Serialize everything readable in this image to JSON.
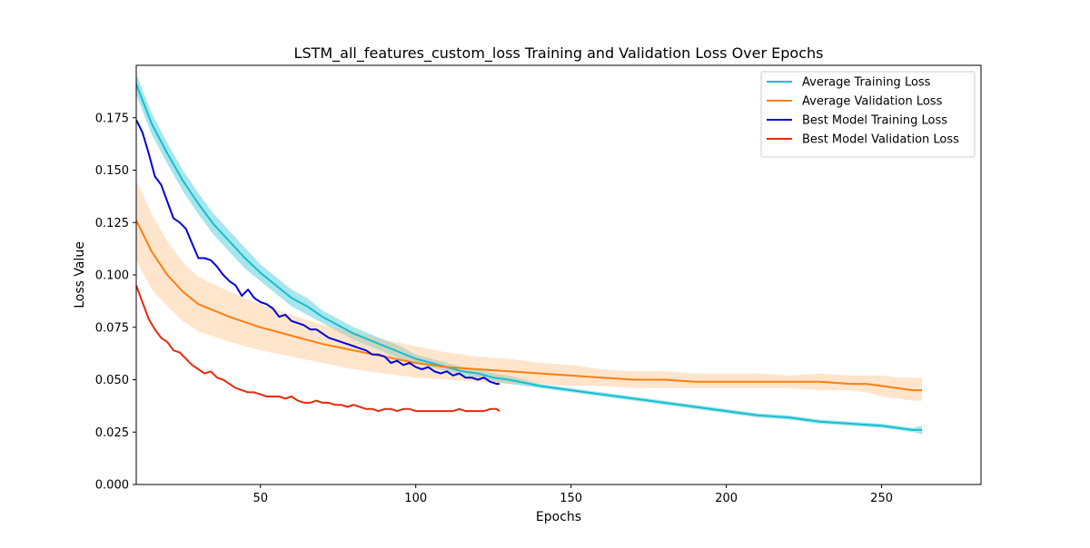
{
  "chart_data": {
    "type": "line",
    "title": "LSTM_all_features_custom_loss  Training and Validation Loss Over Epochs",
    "xlabel": "Epochs",
    "ylabel": "Loss Value",
    "xlim": [
      10,
      282
    ],
    "ylim": [
      0,
      0.2
    ],
    "x_ticks": [
      50,
      100,
      150,
      200,
      250
    ],
    "y_ticks": [
      0.0,
      0.025,
      0.05,
      0.075,
      0.1,
      0.125,
      0.15,
      0.175
    ],
    "x_tick_labels": [
      "50",
      "100",
      "150",
      "200",
      "250"
    ],
    "y_tick_labels": [
      "0.000",
      "0.025",
      "0.050",
      "0.075",
      "0.100",
      "0.125",
      "0.150",
      "0.175"
    ],
    "grid": false,
    "legend_position": "upper right",
    "series": [
      {
        "name": "Average Training Loss",
        "color": "#17becf",
        "band_color": "#17becf",
        "x": [
          10,
          15,
          20,
          25,
          30,
          35,
          40,
          45,
          50,
          55,
          60,
          65,
          70,
          75,
          80,
          85,
          90,
          95,
          100,
          105,
          110,
          115,
          120,
          125,
          130,
          140,
          150,
          160,
          170,
          180,
          190,
          200,
          210,
          220,
          230,
          240,
          250,
          255,
          260,
          263
        ],
        "values": [
          0.191,
          0.172,
          0.158,
          0.145,
          0.134,
          0.124,
          0.116,
          0.108,
          0.101,
          0.095,
          0.089,
          0.085,
          0.08,
          0.076,
          0.072,
          0.069,
          0.066,
          0.063,
          0.06,
          0.058,
          0.056,
          0.054,
          0.053,
          0.051,
          0.05,
          0.047,
          0.045,
          0.043,
          0.041,
          0.039,
          0.037,
          0.035,
          0.033,
          0.032,
          0.03,
          0.029,
          0.028,
          0.027,
          0.026,
          0.026
        ],
        "band_lower": [
          0.186,
          0.167,
          0.153,
          0.14,
          0.129,
          0.119,
          0.111,
          0.103,
          0.097,
          0.091,
          0.085,
          0.081,
          0.077,
          0.073,
          0.069,
          0.066,
          0.063,
          0.06,
          0.058,
          0.056,
          0.054,
          0.052,
          0.051,
          0.049,
          0.048,
          0.046,
          0.044,
          0.042,
          0.04,
          0.038,
          0.036,
          0.034,
          0.032,
          0.031,
          0.029,
          0.028,
          0.027,
          0.026,
          0.025,
          0.024
        ],
        "band_upper": [
          0.196,
          0.177,
          0.163,
          0.15,
          0.139,
          0.129,
          0.121,
          0.113,
          0.105,
          0.099,
          0.093,
          0.089,
          0.083,
          0.079,
          0.075,
          0.072,
          0.069,
          0.066,
          0.062,
          0.06,
          0.058,
          0.056,
          0.055,
          0.053,
          0.052,
          0.048,
          0.046,
          0.044,
          0.042,
          0.04,
          0.038,
          0.036,
          0.034,
          0.033,
          0.031,
          0.03,
          0.029,
          0.028,
          0.027,
          0.028
        ]
      },
      {
        "name": "Average Validation Loss",
        "color": "#ff7f0e",
        "band_color": "#ffbb78",
        "x": [
          10,
          15,
          20,
          25,
          30,
          40,
          50,
          60,
          70,
          80,
          90,
          100,
          110,
          120,
          130,
          140,
          150,
          160,
          170,
          180,
          190,
          200,
          210,
          220,
          230,
          240,
          245,
          250,
          255,
          260,
          263
        ],
        "values": [
          0.126,
          0.111,
          0.1,
          0.092,
          0.086,
          0.08,
          0.075,
          0.071,
          0.067,
          0.064,
          0.061,
          0.058,
          0.056,
          0.055,
          0.054,
          0.053,
          0.052,
          0.051,
          0.05,
          0.05,
          0.049,
          0.049,
          0.049,
          0.049,
          0.049,
          0.048,
          0.048,
          0.047,
          0.046,
          0.045,
          0.045
        ],
        "band_lower": [
          0.107,
          0.093,
          0.085,
          0.078,
          0.073,
          0.068,
          0.064,
          0.061,
          0.058,
          0.055,
          0.053,
          0.051,
          0.05,
          0.049,
          0.048,
          0.048,
          0.047,
          0.047,
          0.046,
          0.046,
          0.046,
          0.046,
          0.046,
          0.046,
          0.045,
          0.045,
          0.044,
          0.042,
          0.041,
          0.04,
          0.04
        ],
        "band_upper": [
          0.145,
          0.129,
          0.116,
          0.106,
          0.099,
          0.092,
          0.086,
          0.081,
          0.076,
          0.073,
          0.069,
          0.066,
          0.063,
          0.061,
          0.06,
          0.058,
          0.057,
          0.055,
          0.054,
          0.054,
          0.053,
          0.053,
          0.053,
          0.052,
          0.053,
          0.052,
          0.052,
          0.052,
          0.051,
          0.051,
          0.051
        ]
      },
      {
        "name": "Best Model Training Loss",
        "color": "#0000dd",
        "x": [
          10,
          12,
          14,
          16,
          18,
          20,
          22,
          24,
          26,
          28,
          30,
          32,
          34,
          36,
          38,
          40,
          42,
          44,
          46,
          48,
          50,
          52,
          54,
          56,
          58,
          60,
          62,
          64,
          66,
          68,
          70,
          72,
          74,
          76,
          78,
          80,
          82,
          84,
          86,
          88,
          90,
          92,
          94,
          96,
          98,
          100,
          102,
          104,
          106,
          108,
          110,
          112,
          114,
          116,
          118,
          120,
          122,
          124,
          126,
          127
        ],
        "values": [
          0.174,
          0.168,
          0.158,
          0.147,
          0.143,
          0.135,
          0.127,
          0.125,
          0.122,
          0.115,
          0.108,
          0.108,
          0.107,
          0.104,
          0.1,
          0.097,
          0.095,
          0.09,
          0.093,
          0.089,
          0.087,
          0.086,
          0.084,
          0.08,
          0.081,
          0.078,
          0.077,
          0.076,
          0.074,
          0.074,
          0.072,
          0.07,
          0.069,
          0.068,
          0.067,
          0.066,
          0.065,
          0.064,
          0.062,
          0.062,
          0.061,
          0.058,
          0.059,
          0.057,
          0.058,
          0.056,
          0.055,
          0.056,
          0.054,
          0.053,
          0.054,
          0.052,
          0.053,
          0.051,
          0.051,
          0.05,
          0.051,
          0.049,
          0.048,
          0.048
        ]
      },
      {
        "name": "Best Model Validation Loss",
        "color": "#e8290c",
        "x": [
          10,
          12,
          14,
          16,
          18,
          20,
          22,
          24,
          26,
          28,
          30,
          32,
          34,
          36,
          38,
          40,
          42,
          44,
          46,
          48,
          50,
          52,
          54,
          56,
          58,
          60,
          62,
          64,
          66,
          68,
          70,
          72,
          74,
          76,
          78,
          80,
          82,
          84,
          86,
          88,
          90,
          92,
          94,
          96,
          98,
          100,
          102,
          104,
          106,
          108,
          110,
          112,
          114,
          116,
          118,
          120,
          122,
          124,
          126,
          127
        ],
        "values": [
          0.095,
          0.087,
          0.079,
          0.074,
          0.07,
          0.068,
          0.064,
          0.063,
          0.06,
          0.057,
          0.055,
          0.053,
          0.054,
          0.051,
          0.05,
          0.048,
          0.046,
          0.045,
          0.044,
          0.044,
          0.043,
          0.042,
          0.042,
          0.042,
          0.041,
          0.042,
          0.04,
          0.039,
          0.039,
          0.04,
          0.039,
          0.039,
          0.038,
          0.038,
          0.037,
          0.038,
          0.037,
          0.036,
          0.036,
          0.035,
          0.036,
          0.036,
          0.035,
          0.036,
          0.036,
          0.035,
          0.035,
          0.035,
          0.035,
          0.035,
          0.035,
          0.035,
          0.036,
          0.035,
          0.035,
          0.035,
          0.035,
          0.036,
          0.036,
          0.035
        ]
      }
    ]
  }
}
